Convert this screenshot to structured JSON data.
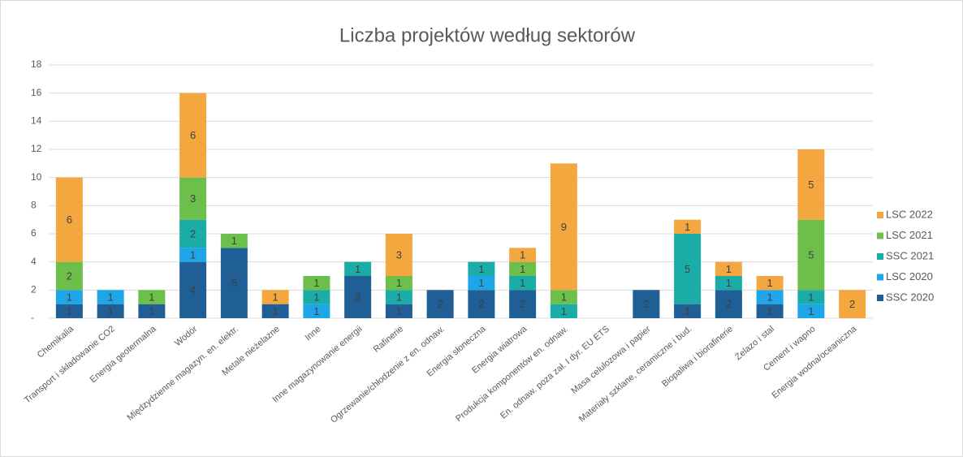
{
  "chart_data": {
    "type": "stacked_bar",
    "title": "Liczba projektów według sektorów",
    "categories": [
      "Chemikalia",
      "Transport i składowanie CO2",
      "Energia geotermalna",
      "Wodór",
      "Międzydzienne magazyn. en. elektr.",
      "Metale nieżelazne",
      "Inne",
      "Inne magazynowanie energii",
      "Rafinerie",
      "Ogrzewanie/chłodzenie z en. odnaw.",
      "Energia słoneczna",
      "Energia wiatrowa",
      "Produkcja komponentów en. odnaw.",
      "En. odnaw. poza zał. I dyr. EU ETS",
      "Masa celulozowa i papier",
      "Materiały szklane, ceramiczne i bud.",
      "Biopaliwa i biorafinerie",
      "Żelazo i stal",
      "Cement i wapno",
      "Energia wodna/oceaniczna"
    ],
    "series": [
      {
        "name": "SSC 2020",
        "color": "#1f5f96",
        "values": [
          1,
          1,
          1,
          4,
          5,
          1,
          0,
          3,
          1,
          2,
          2,
          2,
          0,
          0,
          2,
          1,
          2,
          1,
          0,
          0
        ]
      },
      {
        "name": "LSC 2020",
        "color": "#1ea6e8",
        "values": [
          1,
          1,
          0,
          1,
          0,
          0,
          1,
          0,
          0,
          0,
          1,
          0,
          0,
          0,
          0,
          0,
          0,
          1,
          1,
          0
        ]
      },
      {
        "name": "SSC 2021",
        "color": "#1aada8",
        "values": [
          0,
          0,
          0,
          2,
          0,
          0,
          1,
          1,
          1,
          0,
          1,
          1,
          1,
          0,
          0,
          5,
          1,
          0,
          1,
          0
        ]
      },
      {
        "name": "LSC 2021",
        "color": "#6cbf4a",
        "values": [
          2,
          0,
          1,
          3,
          1,
          0,
          1,
          0,
          1,
          0,
          0,
          1,
          1,
          0,
          0,
          0,
          0,
          0,
          5,
          0
        ]
      },
      {
        "name": "LSC 2022",
        "color": "#f4a73f",
        "values": [
          6,
          0,
          0,
          6,
          0,
          1,
          0,
          0,
          3,
          0,
          0,
          1,
          9,
          0,
          0,
          1,
          1,
          1,
          5,
          2
        ]
      }
    ],
    "ylim": [
      0,
      18
    ],
    "yticks": [
      {
        "value": 0,
        "label": "-"
      },
      2,
      4,
      6,
      8,
      10,
      12,
      14,
      16,
      18
    ],
    "grid": true,
    "legend": "right"
  }
}
